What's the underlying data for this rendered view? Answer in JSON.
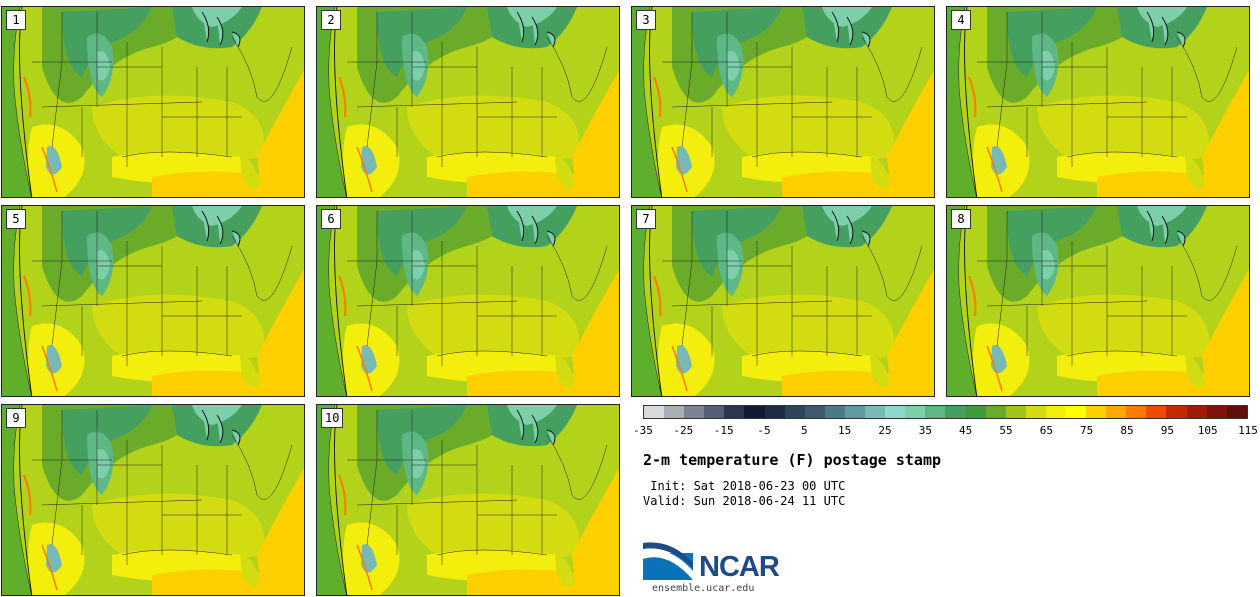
{
  "panels": [
    {
      "label": "1"
    },
    {
      "label": "2"
    },
    {
      "label": "3"
    },
    {
      "label": "4"
    },
    {
      "label": "5"
    },
    {
      "label": "6"
    },
    {
      "label": "7"
    },
    {
      "label": "8"
    },
    {
      "label": "9"
    },
    {
      "label": "10"
    }
  ],
  "colorbar": {
    "colors": [
      "#d9d9d9",
      "#a9aeb6",
      "#7c8296",
      "#565d78",
      "#2e3552",
      "#121a33",
      "#1d2c44",
      "#2c4558",
      "#3c5c6c",
      "#4b7a86",
      "#5f9aa0",
      "#76b9b5",
      "#8fd7cd",
      "#7dcfaa",
      "#5db886",
      "#45a060",
      "#3f9a3a",
      "#6aab2a",
      "#a3c21a",
      "#d3dc10",
      "#f3ee0c",
      "#ffff00",
      "#ffd000",
      "#ffa800",
      "#ff7a00",
      "#f04a00",
      "#c82800",
      "#a01a08",
      "#801408",
      "#601008"
    ],
    "ticks": [
      "-35",
      "-25",
      "-15",
      "-5",
      "5",
      "15",
      "25",
      "35",
      "45",
      "55",
      "65",
      "75",
      "85",
      "95",
      "105",
      "115"
    ]
  },
  "title": "2-m temperature (F) postage stamp",
  "init": " Init: Sat 2018-06-23 00 UTC",
  "valid": "Valid: Sun 2018-06-24 11 UTC",
  "logo_text": "NCAR",
  "url": "ensemble.ucar.edu"
}
